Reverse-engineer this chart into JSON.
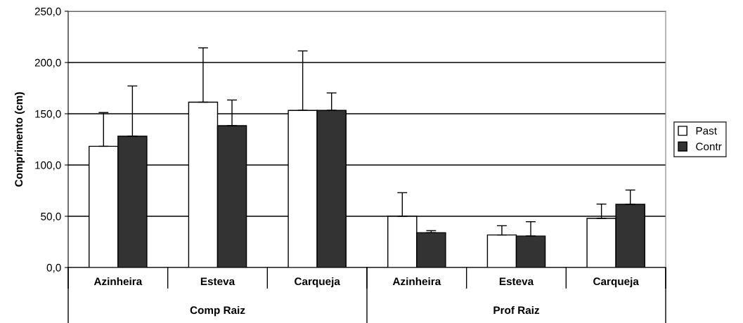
{
  "chart_data": {
    "type": "bar",
    "categories": [
      "Azinheira",
      "Esteva",
      "Carqueja",
      "Azinheira",
      "Esteva",
      "Carqueja"
    ],
    "series": [
      {
        "name": "Past",
        "color": "#ffffff",
        "values": [
          118.2,
          161.3,
          153.3,
          50.0,
          31.8,
          47.9
        ],
        "errors": [
          [
            118.2,
            151.2
          ],
          [
            161.3,
            214.3
          ],
          [
            153.3,
            211.3
          ],
          [
            50.0,
            73.0
          ],
          [
            31.8,
            40.8
          ],
          [
            47.9,
            61.9
          ]
        ]
      },
      {
        "name": "Contr",
        "color": "#333333",
        "values": [
          128.1,
          138.4,
          153.3,
          34.0,
          30.7,
          61.6
        ],
        "errors": [
          [
            128.1,
            177.1
          ],
          [
            138.4,
            163.4
          ],
          [
            153.3,
            170.3
          ],
          [
            34.0,
            36.0
          ],
          [
            30.7,
            44.7
          ],
          [
            61.6,
            75.6
          ]
        ]
      }
    ],
    "ylabel": "Comprimento (cm)",
    "ylim": [
      0,
      250
    ],
    "yticks": [
      {
        "value": 0,
        "label": "0,0"
      },
      {
        "value": 50,
        "label": "50,0"
      },
      {
        "value": 100,
        "label": "100,0"
      },
      {
        "value": 150,
        "label": "150,0"
      },
      {
        "value": 200,
        "label": "200,0"
      },
      {
        "value": 250,
        "label": "250,0"
      }
    ],
    "annotations": [
      "Comp Raiz",
      "Prof Raiz"
    ],
    "grid": "y",
    "legend": "right"
  }
}
